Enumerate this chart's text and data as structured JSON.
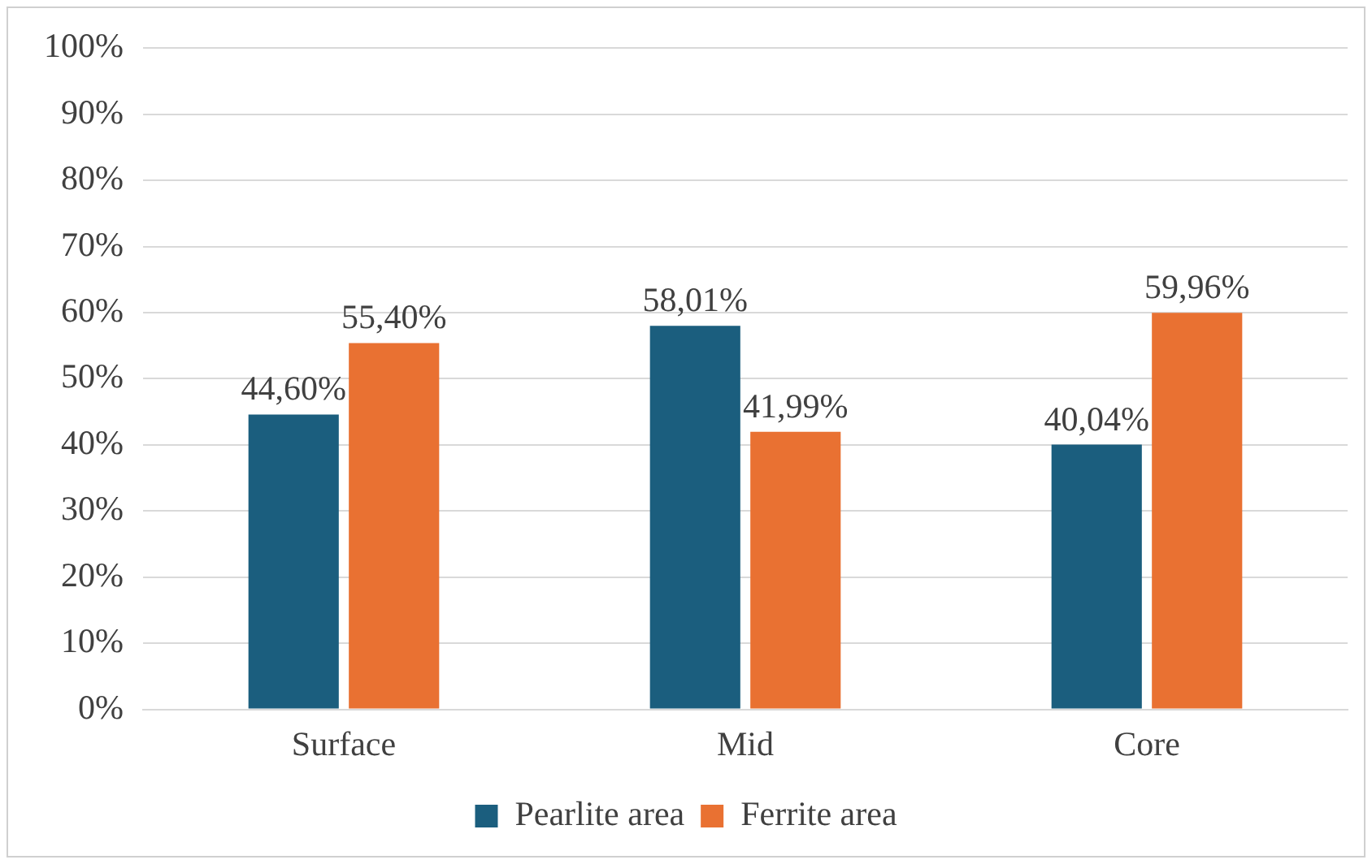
{
  "chart_data": {
    "type": "bar",
    "categories": [
      "Surface",
      "Mid",
      "Core"
    ],
    "series": [
      {
        "name": "Pearlite area",
        "color": "#1b5e7e",
        "values": [
          44.6,
          58.01,
          40.04
        ],
        "value_labels": [
          "44,60%",
          "58,01%",
          "40,04%"
        ]
      },
      {
        "name": "Ferrite area",
        "color": "#e97132",
        "values": [
          55.4,
          41.99,
          59.96
        ],
        "value_labels": [
          "55,40%",
          "41,99%",
          "59,96%"
        ]
      }
    ],
    "ylim": [
      0,
      100
    ],
    "yticks": [
      {
        "value": 0,
        "label": "0%"
      },
      {
        "value": 10,
        "label": "10%"
      },
      {
        "value": 20,
        "label": "20%"
      },
      {
        "value": 30,
        "label": "30%"
      },
      {
        "value": 40,
        "label": "40%"
      },
      {
        "value": 50,
        "label": "50%"
      },
      {
        "value": 60,
        "label": "60%"
      },
      {
        "value": 70,
        "label": "70%"
      },
      {
        "value": 80,
        "label": "80%"
      },
      {
        "value": 90,
        "label": "90%"
      },
      {
        "value": 100,
        "label": "100%"
      }
    ],
    "grid": "y",
    "legend": "bottom"
  }
}
